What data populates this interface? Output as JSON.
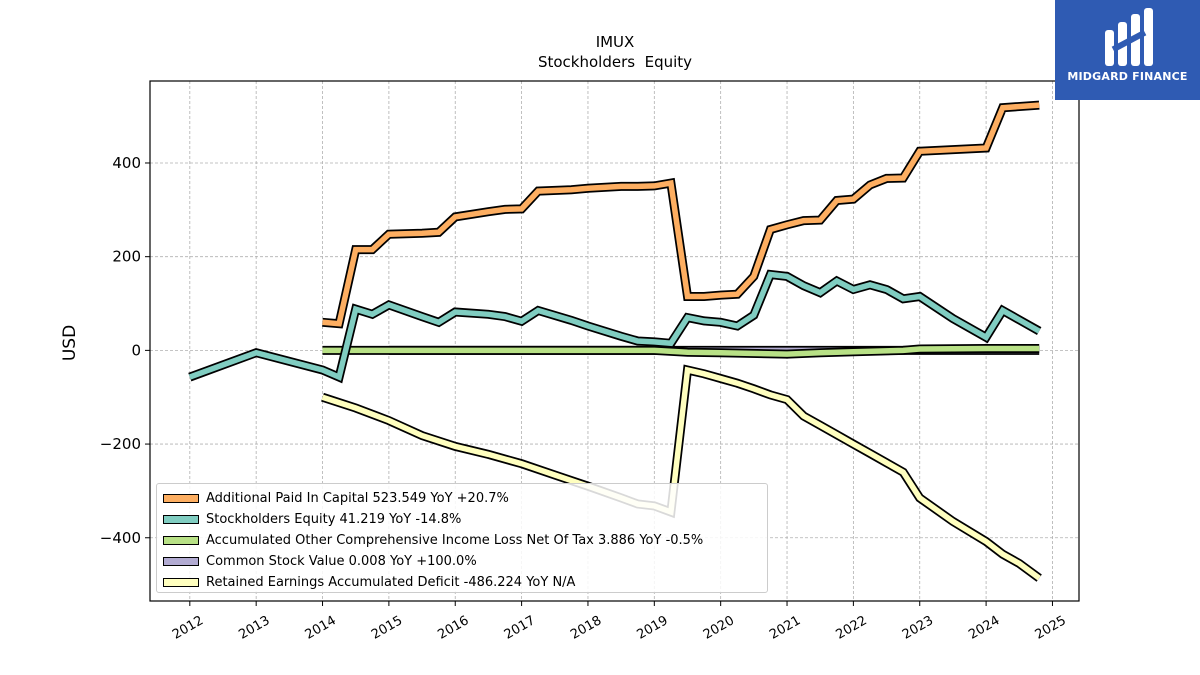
{
  "brand": {
    "name": "MIDGARD FINANCE"
  },
  "chart_data": {
    "type": "line",
    "title": "IMUX",
    "subtitle": "Stockholders  Equity",
    "ylabel": "USD",
    "xlabel": "",
    "xlim": [
      2011.4,
      2025.4
    ],
    "ylim": [
      -535,
      575
    ],
    "xticks": [
      2012,
      2013,
      2014,
      2015,
      2016,
      2017,
      2018,
      2019,
      2020,
      2021,
      2022,
      2023,
      2024,
      2025
    ],
    "yticks": [
      -400,
      -200,
      0,
      200,
      400
    ],
    "ytick_labels": [
      "−400",
      "−200",
      "0",
      "200",
      "400"
    ],
    "grid": true,
    "legend_position": "lower-left",
    "series": [
      {
        "name": "Additional Paid In Capital",
        "legend": "Additional Paid In Capital  523.549 YoY +20.7%",
        "color": "#fdae61",
        "x": [
          2014.0,
          2014.25,
          2014.5,
          2014.75,
          2015.0,
          2015.5,
          2015.75,
          2016.0,
          2016.5,
          2016.75,
          2017.0,
          2017.25,
          2017.75,
          2018.0,
          2018.5,
          2018.75,
          2019.0,
          2019.25,
          2019.5,
          2019.75,
          2020.0,
          2020.25,
          2020.5,
          2020.75,
          2021.0,
          2021.25,
          2021.5,
          2021.75,
          2022.0,
          2022.25,
          2022.5,
          2022.75,
          2023.0,
          2024.0,
          2024.25,
          2024.8
        ],
        "y": [
          60,
          57,
          215,
          215,
          248,
          250,
          252,
          285,
          296,
          301,
          302,
          340,
          343,
          346,
          350,
          350,
          351,
          357,
          115,
          115,
          118,
          120,
          158,
          258,
          268,
          277,
          278,
          320,
          323,
          353,
          367,
          368,
          425,
          432,
          518,
          523.549
        ]
      },
      {
        "name": "Stockholders Equity",
        "legend": "Stockholders Equity  41.219 YoY -14.8%",
        "color": "#80cdc1",
        "x": [
          2012.0,
          2013.0,
          2014.0,
          2014.25,
          2014.5,
          2014.75,
          2015.0,
          2015.5,
          2015.75,
          2016.0,
          2016.5,
          2016.75,
          2017.0,
          2017.25,
          2017.75,
          2018.0,
          2018.5,
          2018.75,
          2019.0,
          2019.25,
          2019.5,
          2019.75,
          2020.0,
          2020.25,
          2020.5,
          2020.75,
          2021.0,
          2021.25,
          2021.5,
          2021.75,
          2022.0,
          2022.25,
          2022.5,
          2022.75,
          2023.0,
          2023.5,
          2024.0,
          2024.25,
          2024.8
        ],
        "y": [
          -57,
          -5,
          -42,
          -57,
          88,
          77,
          97,
          72,
          60,
          82,
          77,
          72,
          62,
          85,
          64,
          52,
          30,
          20,
          18,
          15,
          70,
          63,
          60,
          52,
          75,
          162,
          158,
          138,
          123,
          148,
          130,
          140,
          130,
          110,
          115,
          68,
          28,
          85,
          41.219
        ]
      },
      {
        "name": "Accumulated Other Comprehensive Income Loss Net Of Tax",
        "legend": "Accumulated Other Comprehensive Income Loss Net Of Tax  3.886 YoY -0.5%",
        "color": "#b8e186",
        "x": [
          2014.0,
          2015.0,
          2016.0,
          2017.0,
          2018.0,
          2019.0,
          2019.5,
          2020.0,
          2021.0,
          2021.5,
          2022.0,
          2022.75,
          2023.0,
          2024.0,
          2024.8
        ],
        "y": [
          0,
          0,
          0,
          0,
          0,
          0,
          -4,
          -5,
          -8,
          -5,
          -3,
          0,
          3,
          4,
          3.886
        ]
      },
      {
        "name": "Common Stock Value",
        "legend": "Common Stock Value  0.008 YoY +100.0%",
        "color": "#b2abd2",
        "x": [
          2015.0,
          2016.0,
          2017.0,
          2018.0,
          2019.0,
          2020.0,
          2021.0,
          2022.0,
          2023.0,
          2024.0,
          2024.8
        ],
        "y": [
          0,
          0,
          0,
          0,
          0,
          0,
          0,
          0,
          0,
          0,
          0.008
        ]
      },
      {
        "name": "Retained Earnings Accumulated Deficit",
        "legend": "Retained Earnings Accumulated Deficit  -486.224 YoY N/A",
        "color": "#ffffbf",
        "x": [
          2014.0,
          2014.5,
          2015.0,
          2015.5,
          2016.0,
          2016.5,
          2017.0,
          2017.5,
          2018.0,
          2018.5,
          2018.75,
          2019.0,
          2019.25,
          2019.5,
          2019.75,
          2020.0,
          2020.25,
          2020.5,
          2020.75,
          2021.0,
          2021.25,
          2021.5,
          2021.75,
          2022.0,
          2022.25,
          2022.5,
          2022.75,
          2023.0,
          2023.5,
          2024.0,
          2024.25,
          2024.5,
          2024.8
        ],
        "y": [
          -100,
          -123,
          -150,
          -182,
          -205,
          -222,
          -242,
          -266,
          -290,
          -315,
          -328,
          -332,
          -345,
          -42,
          -50,
          -60,
          -70,
          -82,
          -95,
          -105,
          -140,
          -160,
          -180,
          -200,
          -220,
          -240,
          -260,
          -315,
          -365,
          -408,
          -435,
          -455,
          -486.224
        ]
      }
    ],
    "draw_order": [
      4,
      3,
      2,
      1,
      0
    ]
  }
}
